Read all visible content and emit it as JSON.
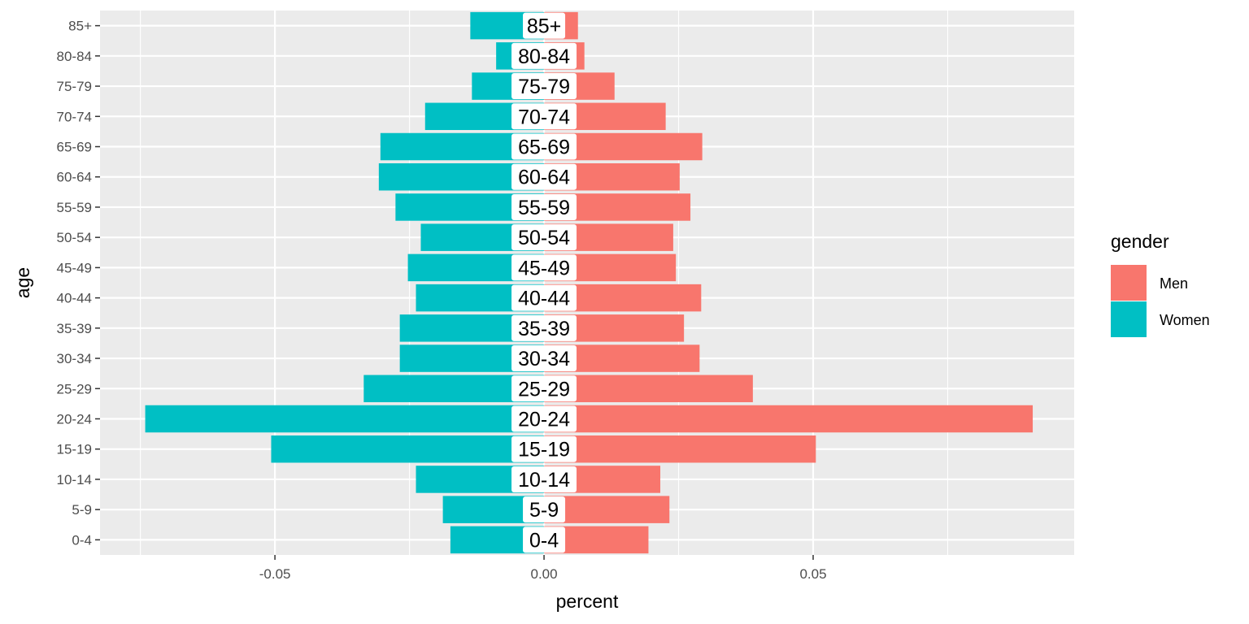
{
  "chart_data": {
    "type": "bar",
    "orientation": "horizontal",
    "title": "",
    "xlabel": "percent",
    "ylabel": "age",
    "xlim": [
      -0.0825,
      0.0985
    ],
    "x_ticks": [
      -0.05,
      0.0,
      0.05
    ],
    "x_tick_labels": [
      "-0.05",
      "0.00",
      "0.05"
    ],
    "categories": [
      "0-4",
      "5-9",
      "10-14",
      "15-19",
      "20-24",
      "25-29",
      "30-34",
      "35-39",
      "40-44",
      "45-49",
      "50-54",
      "55-59",
      "60-64",
      "65-69",
      "70-74",
      "75-79",
      "80-84",
      "85+"
    ],
    "series": [
      {
        "name": "Men",
        "color": "#F8766D",
        "values": [
          0.0194,
          0.0233,
          0.0216,
          0.0505,
          0.0908,
          0.0388,
          0.0289,
          0.026,
          0.0292,
          0.0245,
          0.024,
          0.0272,
          0.0252,
          0.0294,
          0.0226,
          0.0131,
          0.0075,
          0.0063
        ]
      },
      {
        "name": "Women",
        "color": "#00BFC4",
        "values": [
          -0.0174,
          -0.0188,
          -0.0238,
          -0.0507,
          -0.0741,
          -0.0335,
          -0.0268,
          -0.0268,
          -0.0238,
          -0.0253,
          -0.0229,
          -0.0276,
          -0.0307,
          -0.0304,
          -0.0221,
          -0.0134,
          -0.0089,
          -0.0137
        ]
      }
    ],
    "legend": {
      "title": "gender",
      "position": "right",
      "entries": [
        "Men",
        "Women"
      ]
    },
    "grid": true,
    "panel_background": "#EBEBEB",
    "center_labels": true
  }
}
